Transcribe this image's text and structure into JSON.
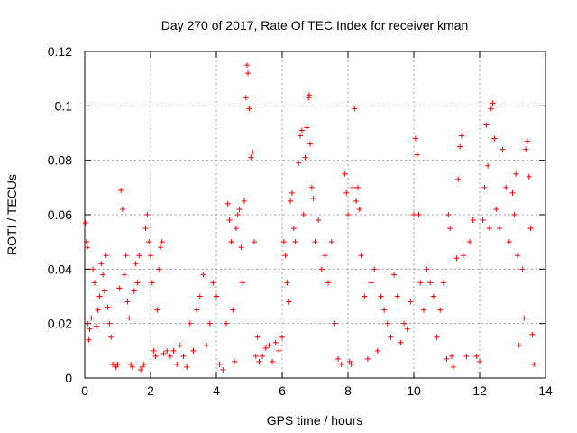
{
  "chart_data": {
    "type": "scatter",
    "title": "Day 270 of 2017, Rate Of TEC Index for receiver kman",
    "xlabel": "GPS time / hours",
    "ylabel": "ROTI / TECUs",
    "xlim": [
      0,
      14
    ],
    "ylim": [
      0,
      0.12
    ],
    "x_ticks": [
      "0",
      "2",
      "4",
      "6",
      "8",
      "10",
      "12",
      "14"
    ],
    "y_ticks": [
      "0",
      "0.02",
      "0.04",
      "0.06",
      "0.08",
      "0.1",
      "0.12"
    ],
    "grid": true,
    "marker": "plus",
    "color": "#ff0000",
    "series": [
      {
        "points": [
          [
            0.02,
            0.057
          ],
          [
            0.05,
            0.05
          ],
          [
            0.08,
            0.048
          ],
          [
            0.1,
            0.02
          ],
          [
            0.12,
            0.014
          ],
          [
            0.15,
            0.018
          ],
          [
            0.2,
            0.022
          ],
          [
            0.25,
            0.04
          ],
          [
            0.3,
            0.035
          ],
          [
            0.35,
            0.019
          ],
          [
            0.4,
            0.025
          ],
          [
            0.45,
            0.03
          ],
          [
            0.5,
            0.042
          ],
          [
            0.55,
            0.038
          ],
          [
            0.6,
            0.032
          ],
          [
            0.65,
            0.045
          ],
          [
            0.7,
            0.026
          ],
          [
            0.75,
            0.02
          ],
          [
            0.8,
            0.015
          ],
          [
            0.85,
            0.005
          ],
          [
            0.9,
            0.005
          ],
          [
            0.95,
            0.004
          ],
          [
            1.0,
            0.005
          ],
          [
            1.05,
            0.033
          ],
          [
            1.1,
            0.069
          ],
          [
            1.15,
            0.062
          ],
          [
            1.2,
            0.038
          ],
          [
            1.25,
            0.045
          ],
          [
            1.3,
            0.028
          ],
          [
            1.35,
            0.022
          ],
          [
            1.4,
            0.005
          ],
          [
            1.45,
            0.004
          ],
          [
            1.5,
            0.032
          ],
          [
            1.55,
            0.042
          ],
          [
            1.6,
            0.035
          ],
          [
            1.65,
            0.045
          ],
          [
            1.7,
            0.003
          ],
          [
            1.75,
            0.004
          ],
          [
            1.8,
            0.005
          ],
          [
            1.85,
            0.055
          ],
          [
            1.9,
            0.06
          ],
          [
            1.95,
            0.05
          ],
          [
            2.0,
            0.045
          ],
          [
            2.05,
            0.035
          ],
          [
            2.1,
            0.01
          ],
          [
            2.15,
            0.008
          ],
          [
            2.2,
            0.025
          ],
          [
            2.25,
            0.04
          ],
          [
            2.3,
            0.048
          ],
          [
            2.35,
            0.05
          ],
          [
            2.4,
            0.009
          ],
          [
            2.5,
            0.01
          ],
          [
            2.6,
            0.008
          ],
          [
            2.7,
            0.01
          ],
          [
            2.8,
            0.005
          ],
          [
            2.9,
            0.012
          ],
          [
            3.0,
            0.008
          ],
          [
            3.1,
            0.004
          ],
          [
            3.2,
            0.02
          ],
          [
            3.3,
            0.01
          ],
          [
            3.4,
            0.025
          ],
          [
            3.5,
            0.03
          ],
          [
            3.6,
            0.038
          ],
          [
            3.7,
            0.012
          ],
          [
            3.8,
            0.02
          ],
          [
            3.9,
            0.035
          ],
          [
            4.0,
            0.03
          ],
          [
            4.1,
            0.005
          ],
          [
            4.2,
            0.003
          ],
          [
            4.3,
            0.02
          ],
          [
            4.35,
            0.064
          ],
          [
            4.4,
            0.058
          ],
          [
            4.45,
            0.05
          ],
          [
            4.5,
            0.025
          ],
          [
            4.55,
            0.006
          ],
          [
            4.6,
            0.055
          ],
          [
            4.65,
            0.06
          ],
          [
            4.7,
            0.062
          ],
          [
            4.75,
            0.048
          ],
          [
            4.8,
            0.035
          ],
          [
            4.85,
            0.065
          ],
          [
            4.9,
            0.103
          ],
          [
            4.93,
            0.115
          ],
          [
            4.96,
            0.112
          ],
          [
            5.0,
            0.099
          ],
          [
            5.05,
            0.081
          ],
          [
            5.1,
            0.083
          ],
          [
            5.15,
            0.05
          ],
          [
            5.2,
            0.008
          ],
          [
            5.25,
            0.015
          ],
          [
            5.3,
            0.006
          ],
          [
            5.4,
            0.008
          ],
          [
            5.5,
            0.011
          ],
          [
            5.6,
            0.012
          ],
          [
            5.7,
            0.006
          ],
          [
            5.8,
            0.013
          ],
          [
            5.9,
            0.01
          ],
          [
            6.0,
            0.015
          ],
          [
            6.05,
            0.05
          ],
          [
            6.1,
            0.045
          ],
          [
            6.15,
            0.035
          ],
          [
            6.2,
            0.028
          ],
          [
            6.25,
            0.065
          ],
          [
            6.3,
            0.068
          ],
          [
            6.35,
            0.055
          ],
          [
            6.4,
            0.05
          ],
          [
            6.5,
            0.079
          ],
          [
            6.55,
            0.089
          ],
          [
            6.6,
            0.091
          ],
          [
            6.65,
            0.06
          ],
          [
            6.7,
            0.081
          ],
          [
            6.75,
            0.092
          ],
          [
            6.8,
            0.103
          ],
          [
            6.82,
            0.104
          ],
          [
            6.85,
            0.086
          ],
          [
            6.9,
            0.07
          ],
          [
            6.95,
            0.066
          ],
          [
            7.0,
            0.05
          ],
          [
            7.1,
            0.058
          ],
          [
            7.2,
            0.04
          ],
          [
            7.3,
            0.045
          ],
          [
            7.4,
            0.035
          ],
          [
            7.5,
            0.05
          ],
          [
            7.6,
            0.02
          ],
          [
            7.7,
            0.007
          ],
          [
            7.8,
            0.005
          ],
          [
            7.9,
            0.075
          ],
          [
            7.95,
            0.068
          ],
          [
            8.0,
            0.06
          ],
          [
            8.05,
            0.006
          ],
          [
            8.1,
            0.005
          ],
          [
            8.15,
            0.07
          ],
          [
            8.2,
            0.099
          ],
          [
            8.25,
            0.065
          ],
          [
            8.3,
            0.07
          ],
          [
            8.35,
            0.062
          ],
          [
            8.4,
            0.045
          ],
          [
            8.5,
            0.03
          ],
          [
            8.6,
            0.007
          ],
          [
            8.7,
            0.035
          ],
          [
            8.8,
            0.04
          ],
          [
            8.9,
            0.01
          ],
          [
            9.0,
            0.03
          ],
          [
            9.1,
            0.025
          ],
          [
            9.2,
            0.02
          ],
          [
            9.3,
            0.015
          ],
          [
            9.4,
            0.038
          ],
          [
            9.5,
            0.03
          ],
          [
            9.6,
            0.013
          ],
          [
            9.7,
            0.02
          ],
          [
            9.8,
            0.018
          ],
          [
            9.9,
            0.028
          ],
          [
            10.0,
            0.06
          ],
          [
            10.05,
            0.088
          ],
          [
            10.1,
            0.082
          ],
          [
            10.15,
            0.06
          ],
          [
            10.2,
            0.035
          ],
          [
            10.3,
            0.025
          ],
          [
            10.4,
            0.04
          ],
          [
            10.5,
            0.035
          ],
          [
            10.6,
            0.03
          ],
          [
            10.7,
            0.015
          ],
          [
            10.8,
            0.025
          ],
          [
            10.9,
            0.035
          ],
          [
            11.0,
            0.007
          ],
          [
            11.05,
            0.06
          ],
          [
            11.1,
            0.055
          ],
          [
            11.15,
            0.008
          ],
          [
            11.2,
            0.004
          ],
          [
            11.3,
            0.044
          ],
          [
            11.35,
            0.073
          ],
          [
            11.4,
            0.085
          ],
          [
            11.45,
            0.089
          ],
          [
            11.5,
            0.045
          ],
          [
            11.6,
            0.008
          ],
          [
            11.7,
            0.05
          ],
          [
            11.8,
            0.058
          ],
          [
            11.9,
            0.008
          ],
          [
            12.0,
            0.006
          ],
          [
            12.1,
            0.058
          ],
          [
            12.15,
            0.07
          ],
          [
            12.2,
            0.093
          ],
          [
            12.25,
            0.078
          ],
          [
            12.3,
            0.055
          ],
          [
            12.35,
            0.099
          ],
          [
            12.4,
            0.101
          ],
          [
            12.45,
            0.088
          ],
          [
            12.5,
            0.062
          ],
          [
            12.6,
            0.055
          ],
          [
            12.7,
            0.084
          ],
          [
            12.8,
            0.07
          ],
          [
            12.9,
            0.05
          ],
          [
            13.0,
            0.068
          ],
          [
            13.05,
            0.06
          ],
          [
            13.1,
            0.075
          ],
          [
            13.15,
            0.045
          ],
          [
            13.2,
            0.012
          ],
          [
            13.3,
            0.04
          ],
          [
            13.35,
            0.022
          ],
          [
            13.4,
            0.084
          ],
          [
            13.45,
            0.087
          ],
          [
            13.5,
            0.074
          ],
          [
            13.55,
            0.055
          ],
          [
            13.6,
            0.016
          ],
          [
            13.65,
            0.005
          ]
        ]
      }
    ]
  }
}
